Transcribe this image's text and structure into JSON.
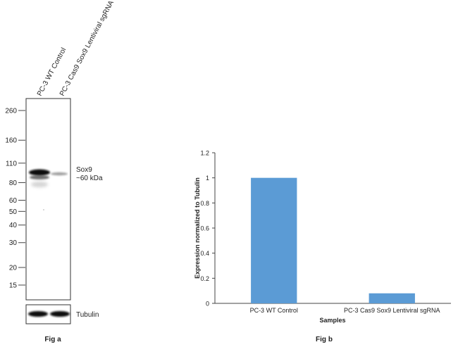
{
  "figure_a": {
    "caption": "Fig a",
    "lane_labels": [
      "PC-3 WT Control",
      "PC-3 Cas9 Sox9 Lentiviral sgRNA"
    ],
    "ladder": [
      {
        "label": "260",
        "kda": 260
      },
      {
        "label": "160",
        "kda": 160
      },
      {
        "label": "110",
        "kda": 110
      },
      {
        "label": "80",
        "kda": 80
      },
      {
        "label": "60",
        "kda": 60
      },
      {
        "label": "50",
        "kda": 50
      },
      {
        "label": "40",
        "kda": 40
      },
      {
        "label": "30",
        "kda": 30
      },
      {
        "label": "20",
        "kda": 20
      },
      {
        "label": "15",
        "kda": 15
      }
    ],
    "target_band": {
      "name": "Sox9",
      "size_label": "~60 kDa"
    },
    "loading_control": "Tubulin"
  },
  "chart_data": {
    "type": "bar",
    "caption": "Fig b",
    "categories": [
      "PC-3 WT Control",
      "PC-3 Cas9 Sox9 Lentiviral sgRNA"
    ],
    "values": [
      1.0,
      0.08
    ],
    "xlabel": "Samples",
    "ylabel": "Expression normalized to Tubulin",
    "ylim": [
      0,
      1.2
    ],
    "yticks": [
      0,
      0.2,
      0.4,
      0.6,
      0.8,
      1,
      1.2
    ],
    "ytick_labels": [
      "0",
      "0.2",
      "0.4",
      "0.6",
      "0.8",
      "1",
      "1.2"
    ],
    "bar_color": "#5b9bd5",
    "grid": false
  }
}
